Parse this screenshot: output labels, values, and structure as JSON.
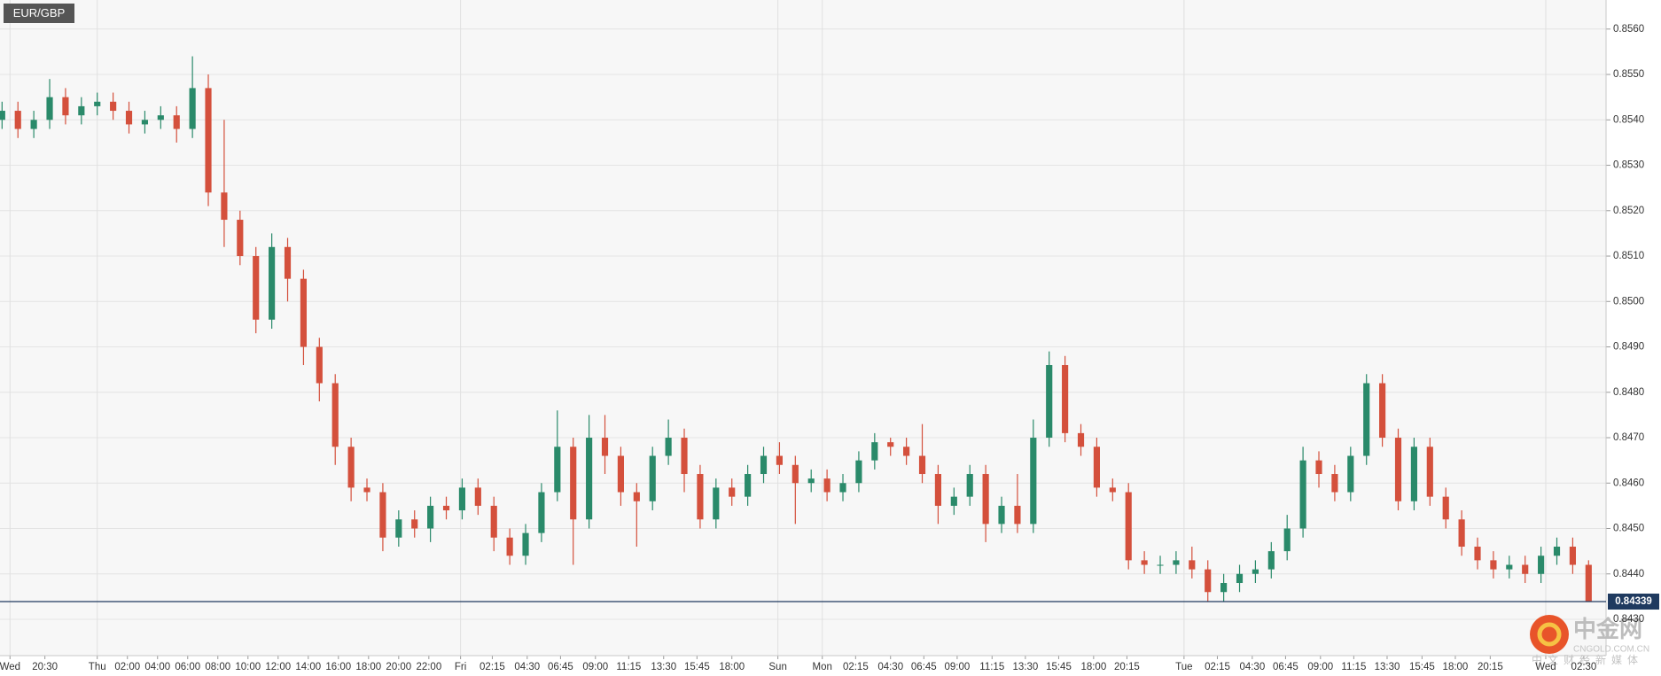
{
  "chart_data": {
    "type": "candlestick",
    "title": "EUR/GBP",
    "up_color": "#2a8a6a",
    "down_color": "#d4503c",
    "grid": true,
    "xlim": [
      -0.13,
      101.1
    ],
    "ylim": [
      0.8422,
      0.85664
    ],
    "yticks": [
      {
        "value": 0.843,
        "label": "0.8430"
      },
      {
        "value": 0.844,
        "label": "0.8440"
      },
      {
        "value": 0.845,
        "label": "0.8450"
      },
      {
        "value": 0.846,
        "label": "0.8460"
      },
      {
        "value": 0.847,
        "label": "0.8470"
      },
      {
        "value": 0.848,
        "label": "0.8480"
      },
      {
        "value": 0.849,
        "label": "0.8490"
      },
      {
        "value": 0.85,
        "label": "0.8500"
      },
      {
        "value": 0.851,
        "label": "0.8510"
      },
      {
        "value": 0.852,
        "label": "0.8520"
      },
      {
        "value": 0.853,
        "label": "0.8530"
      },
      {
        "value": 0.854,
        "label": "0.8540"
      },
      {
        "value": 0.855,
        "label": "0.8550"
      },
      {
        "value": 0.856,
        "label": "0.8560"
      }
    ],
    "xticks": [
      {
        "value": 0.5,
        "label": "Wed"
      },
      {
        "value": 2.7,
        "label": "20:30"
      },
      {
        "value": 6.0,
        "label": "Thu"
      },
      {
        "value": 7.9,
        "label": "02:00"
      },
      {
        "value": 9.8,
        "label": "04:00"
      },
      {
        "value": 11.7,
        "label": "06:00"
      },
      {
        "value": 13.6,
        "label": "08:00"
      },
      {
        "value": 15.5,
        "label": "10:00"
      },
      {
        "value": 17.4,
        "label": "12:00"
      },
      {
        "value": 19.3,
        "label": "14:00"
      },
      {
        "value": 21.2,
        "label": "16:00"
      },
      {
        "value": 23.1,
        "label": "18:00"
      },
      {
        "value": 25.0,
        "label": "20:00"
      },
      {
        "value": 26.9,
        "label": "22:00"
      },
      {
        "value": 28.9,
        "label": "Fri"
      },
      {
        "value": 30.9,
        "label": "02:15"
      },
      {
        "value": 33.1,
        "label": "04:30"
      },
      {
        "value": 35.2,
        "label": "06:45"
      },
      {
        "value": 37.4,
        "label": "09:00"
      },
      {
        "value": 39.5,
        "label": "11:15"
      },
      {
        "value": 41.7,
        "label": "13:30"
      },
      {
        "value": 43.8,
        "label": "15:45"
      },
      {
        "value": 46.0,
        "label": "18:00"
      },
      {
        "value": 48.9,
        "label": "Sun"
      },
      {
        "value": 51.7,
        "label": "Mon"
      },
      {
        "value": 53.8,
        "label": "02:15"
      },
      {
        "value": 56.0,
        "label": "04:30"
      },
      {
        "value": 58.1,
        "label": "06:45"
      },
      {
        "value": 60.2,
        "label": "09:00"
      },
      {
        "value": 62.4,
        "label": "11:15"
      },
      {
        "value": 64.5,
        "label": "13:30"
      },
      {
        "value": 66.6,
        "label": "15:45"
      },
      {
        "value": 68.8,
        "label": "18:00"
      },
      {
        "value": 70.9,
        "label": "20:15"
      },
      {
        "value": 74.5,
        "label": "Tue"
      },
      {
        "value": 76.6,
        "label": "02:15"
      },
      {
        "value": 78.8,
        "label": "04:30"
      },
      {
        "value": 80.9,
        "label": "06:45"
      },
      {
        "value": 83.1,
        "label": "09:00"
      },
      {
        "value": 85.2,
        "label": "11:15"
      },
      {
        "value": 87.3,
        "label": "13:30"
      },
      {
        "value": 89.5,
        "label": "15:45"
      },
      {
        "value": 91.6,
        "label": "18:00"
      },
      {
        "value": 93.8,
        "label": "20:15"
      },
      {
        "value": 97.3,
        "label": "Wed"
      },
      {
        "value": 99.7,
        "label": "02:30"
      }
    ],
    "open": [
      0.854,
      0.8542,
      0.8538,
      0.854,
      0.8545,
      0.8541,
      0.8543,
      0.8544,
      0.8542,
      0.8539,
      0.854,
      0.8541,
      0.8538,
      0.8547,
      0.8524,
      0.8518,
      0.851,
      0.8496,
      0.8512,
      0.8505,
      0.849,
      0.8482,
      0.8468,
      0.8459,
      0.8458,
      0.8448,
      0.8452,
      0.845,
      0.8455,
      0.8454,
      0.8459,
      0.8455,
      0.8448,
      0.8444,
      0.8449,
      0.8458,
      0.8468,
      0.8452,
      0.847,
      0.8466,
      0.8458,
      0.8456,
      0.8466,
      0.847,
      0.8462,
      0.8452,
      0.8459,
      0.8457,
      0.8462,
      0.8466,
      0.8464,
      0.846,
      0.8461,
      0.8458,
      0.846,
      0.8465,
      0.8469,
      0.8468,
      0.8466,
      0.8462,
      0.8455,
      0.8457,
      0.8462,
      0.8451,
      0.8455,
      0.8451,
      0.847,
      0.8486,
      0.8471,
      0.8468,
      0.8459,
      0.8458,
      0.8443,
      0.8442,
      0.8442,
      0.8443,
      0.8441,
      0.8436,
      0.8438,
      0.844,
      0.8441,
      0.8445,
      0.845,
      0.8465,
      0.8462,
      0.8458,
      0.8466,
      0.8482,
      0.847,
      0.8456,
      0.8468,
      0.8457,
      0.8452,
      0.8446,
      0.8443,
      0.8441,
      0.8442,
      0.844,
      0.8444,
      0.8446,
      0.8442
    ],
    "high": [
      0.8544,
      0.8544,
      0.8542,
      0.8549,
      0.8547,
      0.8545,
      0.8546,
      0.8546,
      0.8544,
      0.8542,
      0.8543,
      0.8543,
      0.8554,
      0.855,
      0.854,
      0.852,
      0.8512,
      0.8515,
      0.8514,
      0.8507,
      0.8492,
      0.8484,
      0.847,
      0.8461,
      0.846,
      0.8454,
      0.8454,
      0.8457,
      0.8457,
      0.8461,
      0.8461,
      0.8457,
      0.845,
      0.8451,
      0.846,
      0.8476,
      0.847,
      0.8475,
      0.8475,
      0.8468,
      0.846,
      0.8468,
      0.8474,
      0.8472,
      0.8464,
      0.8461,
      0.8461,
      0.8464,
      0.8468,
      0.8469,
      0.8466,
      0.8463,
      0.8463,
      0.8462,
      0.8467,
      0.8471,
      0.847,
      0.847,
      0.8473,
      0.8464,
      0.8459,
      0.8464,
      0.8464,
      0.8457,
      0.8462,
      0.8474,
      0.8489,
      0.8488,
      0.8473,
      0.847,
      0.8461,
      0.846,
      0.8445,
      0.8444,
      0.8445,
      0.8446,
      0.8443,
      0.844,
      0.8442,
      0.8443,
      0.8447,
      0.8453,
      0.8468,
      0.8467,
      0.8464,
      0.8468,
      0.8484,
      0.8484,
      0.8472,
      0.847,
      0.847,
      0.8459,
      0.8454,
      0.8448,
      0.8445,
      0.8444,
      0.8444,
      0.8446,
      0.8448,
      0.8448,
      0.8443
    ],
    "low": [
      0.8538,
      0.8536,
      0.8536,
      0.8538,
      0.8539,
      0.8539,
      0.8541,
      0.854,
      0.8537,
      0.8537,
      0.8538,
      0.8535,
      0.8536,
      0.8521,
      0.8512,
      0.8508,
      0.8493,
      0.8494,
      0.85,
      0.8486,
      0.8478,
      0.8464,
      0.8456,
      0.8456,
      0.8445,
      0.8446,
      0.8448,
      0.8447,
      0.8452,
      0.8452,
      0.8453,
      0.8445,
      0.8442,
      0.8442,
      0.8447,
      0.8456,
      0.8442,
      0.845,
      0.8462,
      0.8455,
      0.8446,
      0.8454,
      0.8464,
      0.8458,
      0.845,
      0.845,
      0.8455,
      0.8455,
      0.846,
      0.8462,
      0.8451,
      0.8458,
      0.8456,
      0.8456,
      0.8458,
      0.8463,
      0.8466,
      0.8464,
      0.846,
      0.8451,
      0.8453,
      0.8455,
      0.8447,
      0.8449,
      0.8449,
      0.8449,
      0.8468,
      0.8469,
      0.8466,
      0.8457,
      0.8456,
      0.8441,
      0.844,
      0.844,
      0.844,
      0.8439,
      0.8434,
      0.8434,
      0.8436,
      0.8438,
      0.8439,
      0.8443,
      0.8448,
      0.8459,
      0.8456,
      0.8456,
      0.8464,
      0.8468,
      0.8454,
      0.8454,
      0.8455,
      0.845,
      0.8444,
      0.8441,
      0.8439,
      0.8439,
      0.8438,
      0.8438,
      0.8442,
      0.844,
      0.84339
    ],
    "close": [
      0.8542,
      0.8538,
      0.854,
      0.8545,
      0.8541,
      0.8543,
      0.8544,
      0.8542,
      0.8539,
      0.854,
      0.8541,
      0.8538,
      0.8547,
      0.8524,
      0.8518,
      0.851,
      0.8496,
      0.8512,
      0.8505,
      0.849,
      0.8482,
      0.8468,
      0.8459,
      0.8458,
      0.8448,
      0.8452,
      0.845,
      0.8455,
      0.8454,
      0.8459,
      0.8455,
      0.8448,
      0.8444,
      0.8449,
      0.8458,
      0.8468,
      0.8452,
      0.847,
      0.8466,
      0.8458,
      0.8456,
      0.8466,
      0.847,
      0.8462,
      0.8452,
      0.8459,
      0.8457,
      0.8462,
      0.8466,
      0.8464,
      0.846,
      0.8461,
      0.8458,
      0.846,
      0.8465,
      0.8469,
      0.8468,
      0.8466,
      0.8462,
      0.8455,
      0.8457,
      0.8462,
      0.8451,
      0.8455,
      0.8451,
      0.847,
      0.8486,
      0.8471,
      0.8468,
      0.8459,
      0.8458,
      0.8443,
      0.8442,
      0.8442,
      0.8443,
      0.8441,
      0.8436,
      0.8438,
      0.844,
      0.8441,
      0.8445,
      0.845,
      0.8465,
      0.8462,
      0.8458,
      0.8466,
      0.8482,
      0.847,
      0.8456,
      0.8468,
      0.8457,
      0.8452,
      0.8446,
      0.8443,
      0.8441,
      0.8442,
      0.844,
      0.8444,
      0.8446,
      0.8442,
      0.84339
    ],
    "last_price": 0.84339,
    "last_price_color": "#1f3a5f",
    "watermark": {
      "brand": "中金网",
      "site": "CNGOLD.COM.CN",
      "tagline": "中文财经新媒体"
    }
  }
}
